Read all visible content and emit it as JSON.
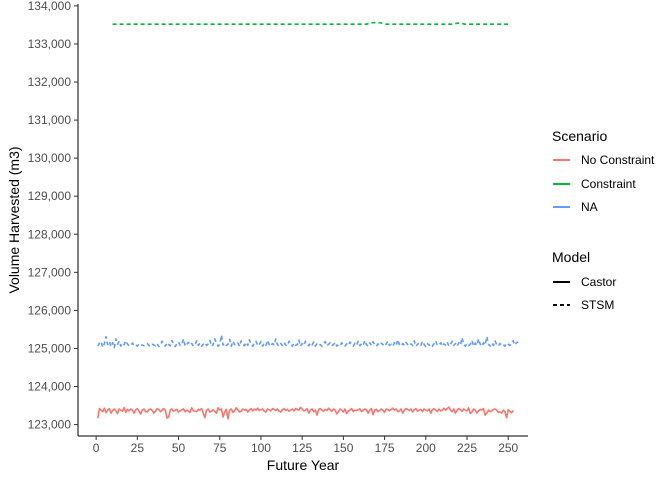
{
  "chart_data": {
    "type": "line",
    "xlabel": "Future Year",
    "ylabel": "Volume Harvested (m3)",
    "xlim": [
      -11,
      262
    ],
    "ylim": [
      122700,
      134050
    ],
    "x_ticks": [
      0,
      25,
      50,
      75,
      100,
      125,
      150,
      175,
      200,
      225,
      250
    ],
    "x_tick_labels": [
      "0",
      "25",
      "50",
      "75",
      "100",
      "125",
      "150",
      "175",
      "200",
      "225",
      "250"
    ],
    "y_ticks": [
      123000,
      124000,
      125000,
      126000,
      127000,
      128000,
      129000,
      130000,
      131000,
      132000,
      133000,
      134000
    ],
    "y_tick_labels": [
      "123,000",
      "124,000",
      "125,000",
      "126,000",
      "127,000",
      "128,000",
      "129,000",
      "130,000",
      "131,000",
      "132,000",
      "133,000",
      "134,000"
    ],
    "grid": false,
    "legend_placement": "right",
    "legends": {
      "scenario": {
        "title": "Scenario",
        "items": [
          {
            "label": "No Constraint",
            "color": "#F8766D"
          },
          {
            "label": "Constraint",
            "color": "#00BA38"
          },
          {
            "label": "NA",
            "color": "#619CFF"
          }
        ]
      },
      "model": {
        "title": "Model",
        "items": [
          {
            "label": "Castor",
            "linetype": "solid"
          },
          {
            "label": "STSM",
            "linetype": "dashed"
          }
        ]
      }
    },
    "series": [
      {
        "scenario": "No Constraint",
        "model": "Castor",
        "color": "#F8766D",
        "linetype": "solid",
        "x_start": 1,
        "x_step": 1,
        "values": [
          123170,
          123420,
          123380,
          123340,
          123430,
          123310,
          123380,
          123420,
          123300,
          123370,
          123410,
          123360,
          123290,
          123410,
          123380,
          123350,
          123450,
          123320,
          123400,
          123360,
          123410,
          123380,
          123300,
          123390,
          123420,
          123350,
          123280,
          123380,
          123410,
          123340,
          123330,
          123390,
          123410,
          123370,
          123300,
          123350,
          123420,
          123400,
          123340,
          123380,
          123420,
          123380,
          123170,
          123200,
          123390,
          123410,
          123350,
          123380,
          123400,
          123330,
          123360,
          123390,
          123410,
          123340,
          123380,
          123350,
          123320,
          123440,
          123360,
          123350,
          123340,
          123400,
          123380,
          123420,
          123300,
          123180,
          123380,
          123410,
          123330,
          123350,
          123390,
          123340,
          123300,
          123440,
          123380,
          123410,
          123200,
          123330,
          123400,
          123150,
          123380,
          123410,
          123320,
          123360,
          123440,
          123390,
          123330,
          123350,
          123410,
          123380,
          123400,
          123330,
          123380,
          123420,
          123360,
          123410,
          123380,
          123430,
          123370,
          123390,
          123410,
          123350,
          123330,
          123410,
          123390,
          123360,
          123420,
          123400,
          123370,
          123410,
          123350,
          123330,
          123390,
          123420,
          123370,
          123400,
          123350,
          123380,
          123410,
          123360,
          123420,
          123400,
          123380,
          123450,
          123410,
          123360,
          123380,
          123420,
          123300,
          123380,
          123410,
          123340,
          123380,
          123250,
          123400,
          123420,
          123380,
          123350,
          123400,
          123370,
          123430,
          123390,
          123350,
          123410,
          123380,
          123280,
          123340,
          123410,
          123380,
          123330,
          123410,
          123290,
          123360,
          123380,
          123420,
          123340,
          123380,
          123370,
          123390,
          123410,
          123340,
          123380,
          123410,
          123390,
          123300,
          123380,
          123420,
          123260,
          123380,
          123400,
          123340,
          123370,
          123410,
          123380,
          123320,
          123410,
          123390,
          123360,
          123400,
          123430,
          123380,
          123410,
          123340,
          123360,
          123410,
          123300,
          123380,
          123420,
          123400,
          123370,
          123410,
          123330,
          123390,
          123420,
          123350,
          123380,
          123400,
          123340,
          123410,
          123380,
          123360,
          123410,
          123300,
          123390,
          123420,
          123380,
          123340,
          123410,
          123360,
          123380,
          123430,
          123380,
          123420,
          123460,
          123380,
          123340,
          123410,
          123300,
          123380,
          123420,
          123390,
          123350,
          123410,
          123380,
          123360,
          123440,
          123290,
          123330,
          123410,
          123380,
          123300,
          123360,
          123400,
          123380,
          123420,
          123250,
          123300,
          123380,
          123340,
          123360,
          123400,
          123410,
          123380,
          123320,
          123330,
          123300,
          123380,
          123340,
          123180,
          123390,
          123350,
          123310,
          123370
        ]
      },
      {
        "scenario": "Constraint",
        "model": "STSM",
        "color": "#00BA38",
        "linetype": "dashed",
        "x": [
          10,
          20,
          50,
          100,
          150,
          164,
          168,
          172,
          176,
          200,
          216,
          220,
          224,
          250
        ],
        "values": [
          133520,
          133520,
          133520,
          133520,
          133520,
          133520,
          133560,
          133560,
          133520,
          133520,
          133520,
          133550,
          133520,
          133520
        ]
      },
      {
        "scenario": "NA",
        "model": "STSM",
        "color": "#619CFF",
        "linetype": "dashed",
        "x_start": 1,
        "x_step": 1,
        "values": [
          125060,
          125140,
          125180,
          125030,
          125120,
          125310,
          125100,
          125180,
          125050,
          125150,
          125020,
          125250,
          125110,
          125190,
          125060,
          125140,
          125100,
          125200,
          125120,
          125060,
          125090,
          125140,
          125080,
          125100,
          125060,
          125120,
          125080,
          125090,
          125070,
          125100,
          125130,
          125080,
          125060,
          125110,
          125090,
          125070,
          125130,
          125050,
          125100,
          125190,
          125110,
          125060,
          125150,
          125100,
          125070,
          125210,
          125100,
          125050,
          125130,
          125170,
          125080,
          125120,
          125250,
          125060,
          125110,
          125160,
          125090,
          125130,
          125060,
          125100,
          125200,
          125080,
          125140,
          125060,
          125110,
          125150,
          125080,
          125120,
          125210,
          125060,
          125100,
          125250,
          125130,
          125060,
          125110,
          125350,
          125090,
          125140,
          125080,
          125110,
          125240,
          125060,
          125190,
          125100,
          125080,
          125140,
          125060,
          125200,
          125120,
          125070,
          125160,
          125080,
          125230,
          125100,
          125060,
          125140,
          125190,
          125070,
          125110,
          125180,
          125060,
          125140,
          125080,
          125210,
          125100,
          125060,
          125130,
          125090,
          125250,
          125100,
          125060,
          125130,
          125080,
          125160,
          125090,
          125070,
          125190,
          125100,
          125060,
          125140,
          125080,
          125100,
          125220,
          125060,
          125130,
          125080,
          125190,
          125110,
          125070,
          125140,
          125090,
          125170,
          125060,
          125120,
          125080,
          125100,
          125060,
          125130,
          125180,
          125070,
          125110,
          125150,
          125080,
          125100,
          125160,
          125060,
          125100,
          125070,
          125150,
          125090,
          125060,
          125120,
          125080,
          125170,
          125100,
          125060,
          125140,
          125090,
          125190,
          125070,
          125120,
          125080,
          125210,
          125100,
          125060,
          125150,
          125080,
          125180,
          125100,
          125060,
          125120,
          125080,
          125140,
          125100,
          125060,
          125120,
          125190,
          125080,
          125110,
          125060,
          125150,
          125080,
          125230,
          125100,
          125060,
          125130,
          125080,
          125160,
          125100,
          125070,
          125120,
          125080,
          125200,
          125060,
          125110,
          125140,
          125080,
          125190,
          125100,
          125050,
          125130,
          125080,
          125110,
          125060,
          125130,
          125200,
          125080,
          125100,
          125150,
          125060,
          125120,
          125090,
          125170,
          125060,
          125110,
          125190,
          125080,
          125130,
          125060,
          125150,
          125090,
          125280,
          125100,
          125060,
          125130,
          125080,
          125110,
          125210,
          125060,
          125140,
          125080,
          125250,
          125110,
          125060,
          125150,
          125090,
          125310,
          125120,
          125060,
          125140,
          125080,
          125200,
          125100,
          125060,
          125130,
          125080,
          125100,
          125060,
          125140,
          125110,
          125080,
          125120,
          125200,
          125090,
          125150,
          125170
        ]
      }
    ]
  }
}
